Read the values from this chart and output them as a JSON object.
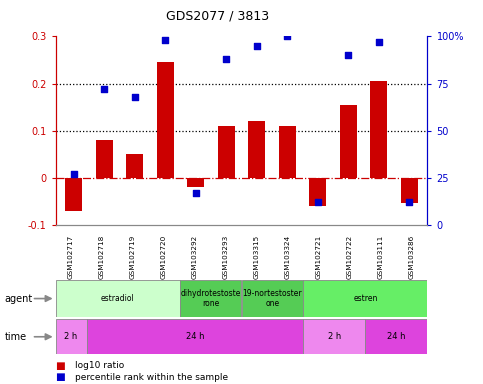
{
  "title": "GDS2077 / 3813",
  "samples": [
    "GSM102717",
    "GSM102718",
    "GSM102719",
    "GSM102720",
    "GSM103292",
    "GSM103293",
    "GSM103315",
    "GSM103324",
    "GSM102721",
    "GSM102722",
    "GSM103111",
    "GSM103286"
  ],
  "log10_ratio": [
    -0.07,
    0.08,
    0.05,
    0.245,
    -0.02,
    0.11,
    0.12,
    0.11,
    -0.06,
    0.155,
    0.205,
    -0.055
  ],
  "percentile_rank": [
    0.27,
    0.72,
    0.68,
    0.98,
    0.17,
    0.88,
    0.95,
    1.0,
    0.12,
    0.9,
    0.97,
    0.12
  ],
  "ylim_left": [
    -0.1,
    0.3
  ],
  "ylim_right": [
    0.0,
    1.0
  ],
  "yticks_left": [
    -0.1,
    0.0,
    0.1,
    0.2,
    0.3
  ],
  "yticks_right": [
    0.0,
    0.25,
    0.5,
    0.75,
    1.0
  ],
  "yticklabels_right": [
    "0",
    "25",
    "50",
    "75",
    "100%"
  ],
  "yticklabels_left": [
    "-0.1",
    "0",
    "0.1",
    "0.2",
    "0.3"
  ],
  "bar_color": "#CC0000",
  "dot_color": "#0000CC",
  "hline_color": "#CC0000",
  "dotline_color": "#000000",
  "agent_groups": [
    {
      "label": "estradiol",
      "start": 0,
      "end": 3,
      "color": "#ccffcc"
    },
    {
      "label": "dihydrotestoste\nrone",
      "start": 4,
      "end": 5,
      "color": "#55cc55"
    },
    {
      "label": "19-nortestoster\none",
      "start": 6,
      "end": 7,
      "color": "#55cc55"
    },
    {
      "label": "estren",
      "start": 8,
      "end": 11,
      "color": "#66ee66"
    }
  ],
  "time_groups": [
    {
      "label": "2 h",
      "start": 0,
      "end": 0,
      "color": "#ee88ee"
    },
    {
      "label": "24 h",
      "start": 1,
      "end": 7,
      "color": "#dd44dd"
    },
    {
      "label": "2 h",
      "start": 8,
      "end": 9,
      "color": "#ee88ee"
    },
    {
      "label": "24 h",
      "start": 10,
      "end": 11,
      "color": "#dd44dd"
    }
  ],
  "legend_red": "log10 ratio",
  "legend_blue": "percentile rank within the sample",
  "bg_color": "#ffffff",
  "tick_label_color_left": "#CC0000",
  "tick_label_color_right": "#0000CC"
}
